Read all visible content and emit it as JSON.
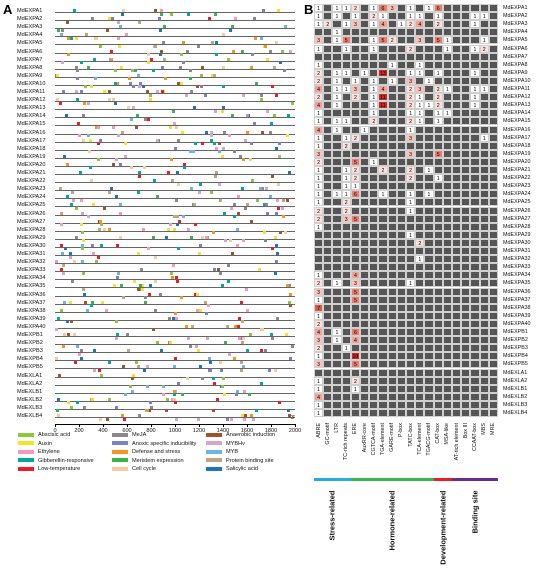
{
  "panel_a_letter": "A",
  "panel_b_letter": "B",
  "genes": [
    "MdEXPA1",
    "MdEXPA2",
    "MdEXPA3",
    "MdEXPA4",
    "MdEXPA5",
    "MdEXPA6",
    "MdEXPA7",
    "MdEXPA8",
    "MdEXPA9",
    "MdEXPA10",
    "MdEXPA11",
    "MdEXPA12",
    "MdEXPA13",
    "MdEXPA14",
    "MdEXPA15",
    "MdEXPA16",
    "MdEXPA17",
    "MdEXPA18",
    "MdEXPA19",
    "MdEXPA20",
    "MdEXPA21",
    "MdEXPA22",
    "MdEXPA23",
    "MdEXPA24",
    "MdEXPA25",
    "MdEXPA26",
    "MdEXPA27",
    "MdEXPA28",
    "MdEXPA29",
    "MdEXPA30",
    "MdEXPA31",
    "MdEXPA32",
    "MdEXPA33",
    "MdEXPA34",
    "MdEXPA35",
    "MdEXPA36",
    "MdEXPA37",
    "MdEXPA38",
    "MdEXPA39",
    "MdEXPA40",
    "MdEXPB1",
    "MdEXPB2",
    "MdEXPB3",
    "MdEXPB4",
    "MdEXPB5",
    "MdEXLA1",
    "MdEXLA2",
    "MdEXLB1",
    "MdEXLB2",
    "MdEXLB3",
    "MdEXLB4"
  ],
  "axis_ticks": [
    "0",
    "200",
    "400",
    "600",
    "800",
    "1000",
    "1200",
    "1400",
    "1600",
    "1800",
    "2000"
  ],
  "axis_end_label": "3'",
  "legend": [
    {
      "label": "Abscisic acid",
      "color": "#8dc63f"
    },
    {
      "label": "Auxin",
      "color": "#f7e12b"
    },
    {
      "label": "Ethylene",
      "color": "#f49ac1"
    },
    {
      "label": "Gibberellin-responsive",
      "color": "#00a99d"
    },
    {
      "label": "Low-temperature",
      "color": "#ed1c24"
    },
    {
      "label": "MeJA",
      "color": "#8a8a8a"
    },
    {
      "label": "Anoxic specific inducibility",
      "color": "#7f7fbf"
    },
    {
      "label": "Defense and stress",
      "color": "#f7941d"
    },
    {
      "label": "Meristem expression",
      "color": "#39b54a"
    },
    {
      "label": "Cell cycle",
      "color": "#f9c9a0"
    },
    {
      "label": "Anaerobic induction",
      "color": "#a0522d"
    },
    {
      "label": "MYBHv",
      "color": "#d4a5d4"
    },
    {
      "label": "MYB",
      "color": "#6db3e8"
    },
    {
      "label": "Protein binding site",
      "color": "#c2a382"
    },
    {
      "label": "Salicylic acid",
      "color": "#1c75bc"
    }
  ],
  "elements": [
    "ABRE",
    "GC-motif",
    "LTR",
    "TC-rich repeats",
    "ERE",
    "AuxRR-core",
    "CGTCA-motif",
    "TGA-element",
    "GARE-motif",
    "P-box",
    "TATC-box",
    "TCA-element",
    "TGACG-motif",
    "CAT-box",
    "MSA-like",
    "AT-rich element",
    "Box III",
    "CCAAT-box",
    "MBS",
    "MRE"
  ],
  "categories": [
    {
      "label": "Stress-related",
      "color": "#29abe2"
    },
    {
      "label": "Hormone-related",
      "color": "#39b54a"
    },
    {
      "label": "Development-related",
      "color": "#ed1c24"
    },
    {
      "label": "Binding site",
      "color": "#662d91"
    }
  ],
  "matrix": [
    [
      "1",
      "",
      "1",
      "1",
      "2",
      "",
      "1",
      "6",
      "3",
      "",
      "1",
      "",
      "1",
      "6",
      "",
      "",
      "",
      "",
      "",
      ""
    ],
    [
      "1",
      "",
      "1",
      "",
      "1",
      "",
      "2",
      "1",
      "",
      "",
      "1",
      "1",
      "",
      "1",
      "",
      "",
      "",
      "1",
      "1",
      ""
    ],
    [
      "1",
      "2",
      "",
      "1",
      "3",
      "",
      "1",
      "4",
      "",
      "1",
      "2",
      "4",
      "",
      "2",
      "",
      "",
      "",
      "1",
      "",
      ""
    ],
    [
      "",
      "",
      "1",
      "",
      "",
      "",
      "",
      "",
      "",
      "",
      "",
      "",
      "",
      "",
      "",
      "",
      "",
      "",
      "",
      ""
    ],
    [
      "3",
      "",
      "1",
      "5",
      "",
      "",
      "1",
      "5",
      "2",
      "",
      "",
      "3",
      "",
      "5",
      "1",
      "",
      "",
      "",
      "1",
      ""
    ],
    [
      "1",
      "",
      "",
      "1",
      "",
      "",
      "1",
      "",
      "",
      "",
      "2",
      "",
      "",
      "",
      "1",
      "",
      "",
      "1",
      "2",
      ""
    ],
    [
      "",
      "",
      "",
      "",
      "",
      "",
      "",
      "",
      "",
      "",
      "",
      "",
      "",
      "",
      "",
      "",
      "",
      "",
      "",
      ""
    ],
    [
      "1",
      "",
      "",
      "",
      "",
      "",
      "",
      "",
      "1",
      "",
      "",
      "1",
      "",
      "",
      "",
      "",
      "",
      "",
      "",
      ""
    ],
    [
      "2",
      "",
      "1",
      "1",
      "",
      "1",
      "",
      "13",
      "",
      "",
      "1",
      "1",
      "",
      "1",
      "",
      "",
      "",
      "1",
      "",
      ""
    ],
    [
      "2",
      "",
      "1",
      "",
      "1",
      "",
      "1",
      "",
      "1",
      "",
      "3",
      "",
      "1",
      "",
      "",
      "",
      "",
      "",
      "",
      ""
    ],
    [
      "4",
      "",
      "1",
      "1",
      "3",
      "",
      "1",
      "4",
      "",
      "",
      "2",
      "3",
      "",
      "2",
      "1",
      "",
      "",
      "1",
      "1",
      ""
    ],
    [
      "2",
      "",
      "1",
      "",
      "2",
      "",
      "1",
      "11",
      "",
      "",
      "2",
      "1",
      "",
      "2",
      "",
      "",
      "",
      "1",
      "",
      ""
    ],
    [
      "4",
      "",
      "1",
      "",
      "",
      "",
      "1",
      "11",
      "",
      "",
      "2",
      "1",
      "1",
      "2",
      "",
      "",
      "",
      "1",
      "",
      ""
    ],
    [
      "1",
      "",
      "",
      "",
      "",
      "",
      "1",
      "",
      "",
      "",
      "1",
      "1",
      "",
      "1",
      "1",
      "",
      "",
      "",
      "",
      ""
    ],
    [
      "1",
      "",
      "1",
      "1",
      "",
      "",
      "2",
      "",
      "",
      "",
      "2",
      "1",
      "",
      "1",
      "",
      "",
      "",
      "",
      "",
      ""
    ],
    [
      "4",
      "",
      "1",
      "",
      "",
      "1",
      "",
      "",
      "",
      "",
      "1",
      "",
      "",
      "",
      "",
      "",
      "",
      "",
      "",
      ""
    ],
    [
      "1",
      "",
      "",
      "1",
      "2",
      "",
      "",
      "",
      "",
      "",
      "3",
      "",
      "",
      "",
      "",
      "",
      "",
      "",
      "1",
      ""
    ],
    [
      "1",
      "",
      "",
      "2",
      "",
      "",
      "",
      "",
      "",
      "",
      "",
      "",
      "",
      "",
      "",
      "",
      "",
      "",
      "",
      ""
    ],
    [
      "3",
      "",
      "",
      "",
      "",
      "",
      "",
      "",
      "",
      "",
      "3",
      "",
      "",
      "5",
      "",
      "",
      "",
      "",
      "",
      ""
    ],
    [
      "2",
      "",
      "",
      "",
      "5",
      "",
      "1",
      "",
      "",
      "",
      "",
      "",
      "",
      "",
      "",
      "",
      "",
      "",
      "",
      ""
    ],
    [
      "1",
      "",
      "",
      "1",
      "2",
      "",
      "",
      "2",
      "",
      "",
      "2",
      "",
      "1",
      "",
      "",
      "",
      "",
      "",
      "",
      ""
    ],
    [
      "1",
      "",
      "",
      "1",
      "2",
      "",
      "",
      "",
      "",
      "",
      "2",
      "",
      "",
      "1",
      "",
      "",
      "",
      "",
      "",
      ""
    ],
    [
      "1",
      "",
      "",
      "1",
      "1",
      "",
      "",
      "",
      "",
      "",
      "",
      "",
      "",
      "",
      "",
      "",
      "",
      "",
      "",
      ""
    ],
    [
      "1",
      "",
      "1",
      "1",
      "6",
      "",
      "",
      "1",
      "",
      "",
      "1",
      "",
      "1",
      "",
      "",
      "",
      "",
      "",
      "",
      ""
    ],
    [
      "1",
      "",
      "",
      "2",
      "",
      "",
      "",
      "",
      "",
      "",
      "1",
      "",
      "",
      "",
      "",
      "",
      "",
      "",
      "",
      ""
    ],
    [
      "2",
      "",
      "",
      "2",
      "",
      "",
      "",
      "",
      "",
      "",
      "1",
      "",
      "",
      "",
      "",
      "",
      "",
      "",
      "",
      ""
    ],
    [
      "2",
      "",
      "",
      "3",
      "5",
      "",
      "",
      "",
      "",
      "",
      "",
      "",
      "",
      "",
      "",
      "",
      "",
      "",
      "",
      ""
    ],
    [
      "1",
      "",
      "",
      "",
      "",
      "",
      "",
      "",
      "",
      "",
      "",
      "",
      "",
      "",
      "",
      "",
      "",
      "",
      "",
      ""
    ],
    [
      "",
      "",
      "",
      "",
      "",
      "",
      "",
      "",
      "",
      "",
      "1",
      "",
      "",
      "",
      "",
      "",
      "",
      "",
      "",
      ""
    ],
    [
      "",
      "",
      "",
      "",
      "",
      "",
      "",
      "",
      "",
      "",
      "",
      "2",
      "",
      "",
      "",
      "",
      "",
      "",
      "",
      ""
    ],
    [
      "",
      "",
      "",
      "",
      "",
      "",
      "",
      "",
      "",
      "",
      "",
      "",
      "",
      "",
      "",
      "",
      "",
      "",
      "",
      ""
    ],
    [
      "",
      "",
      "",
      "",
      "",
      "",
      "",
      "",
      "",
      "",
      "",
      "1",
      "",
      "",
      "",
      "",
      "",
      "",
      "",
      ""
    ],
    [
      "",
      "",
      "",
      "",
      "",
      "",
      "",
      "",
      "",
      "",
      "",
      "",
      "",
      "",
      "",
      "",
      "",
      "",
      "",
      ""
    ],
    [
      "1",
      "",
      "",
      "",
      "4",
      "",
      "",
      "",
      "",
      "",
      "",
      "",
      "",
      "",
      "",
      "",
      "",
      "",
      "",
      ""
    ],
    [
      "2",
      "",
      "1",
      "",
      "3",
      "",
      "",
      "",
      "",
      "",
      "1",
      "",
      "",
      "",
      "",
      "",
      "",
      "",
      "",
      ""
    ],
    [
      "3",
      "",
      "",
      "",
      "5",
      "",
      "",
      "",
      "",
      "",
      "",
      "",
      "",
      "",
      "",
      "",
      "",
      "",
      "",
      ""
    ],
    [
      "1",
      "",
      "",
      "",
      "5",
      "",
      "",
      "",
      "",
      "",
      "",
      "",
      "",
      "",
      "",
      "",
      "",
      "",
      "",
      ""
    ],
    [
      "7",
      "",
      "",
      "",
      "",
      "",
      "",
      "",
      "",
      "",
      "",
      "",
      "",
      "",
      "",
      "",
      "",
      "",
      "",
      ""
    ],
    [
      "1",
      "",
      "",
      "",
      "",
      "",
      "",
      "",
      "",
      "",
      "",
      "",
      "",
      "",
      "",
      "",
      "",
      "",
      "",
      ""
    ],
    [
      "2",
      "",
      "",
      "",
      "",
      "",
      "",
      "",
      "",
      "",
      "",
      "",
      "",
      "",
      "",
      "",
      "",
      "",
      "",
      ""
    ],
    [
      "4",
      "",
      "1",
      "",
      "6",
      "",
      "",
      "",
      "",
      "",
      "",
      "",
      "",
      "",
      "",
      "",
      "",
      "",
      "",
      ""
    ],
    [
      "3",
      "",
      "1",
      "",
      "4",
      "",
      "",
      "",
      "",
      "",
      "",
      "",
      "",
      "",
      "",
      "",
      "",
      "",
      "",
      ""
    ],
    [
      "2",
      "",
      "",
      "1",
      "",
      "",
      "",
      "",
      "",
      "",
      "",
      "",
      "",
      "",
      "",
      "",
      "",
      "",
      "",
      ""
    ],
    [
      "1",
      "",
      "",
      "",
      "10",
      "",
      "",
      "",
      "",
      "",
      "",
      "",
      "",
      "",
      "",
      "",
      "",
      "",
      "",
      ""
    ],
    [
      "3",
      "",
      "",
      "",
      "5",
      "",
      "",
      "",
      "",
      "",
      "",
      "",
      "",
      "",
      "",
      "",
      "",
      "",
      "",
      ""
    ],
    [
      "",
      "",
      "",
      "",
      "",
      "",
      "",
      "",
      "",
      "",
      "",
      "",
      "",
      "",
      "",
      "",
      "",
      "",
      "",
      ""
    ],
    [
      "1",
      "",
      "",
      "",
      "2",
      "",
      "",
      "",
      "",
      "",
      "",
      "",
      "",
      "",
      "",
      "",
      "",
      "",
      "",
      ""
    ],
    [
      "1",
      "",
      "",
      "",
      "1",
      "",
      "",
      "",
      "",
      "",
      "",
      "",
      "",
      "",
      "",
      "",
      "",
      "",
      "",
      ""
    ],
    [
      "4",
      "",
      "",
      "",
      "",
      "",
      "",
      "",
      "",
      "",
      "",
      "",
      "",
      "",
      "",
      "",
      "",
      "",
      "",
      ""
    ],
    [
      "1",
      "",
      "",
      "",
      "",
      "",
      "",
      "",
      "",
      "",
      "",
      "",
      "",
      "",
      "",
      "",
      "",
      "",
      "",
      ""
    ],
    [
      "1",
      "",
      "",
      "",
      "",
      "",
      "",
      "",
      "",
      "",
      "",
      "",
      "",
      "",
      "",
      "",
      "",
      "",
      "",
      ""
    ]
  ]
}
